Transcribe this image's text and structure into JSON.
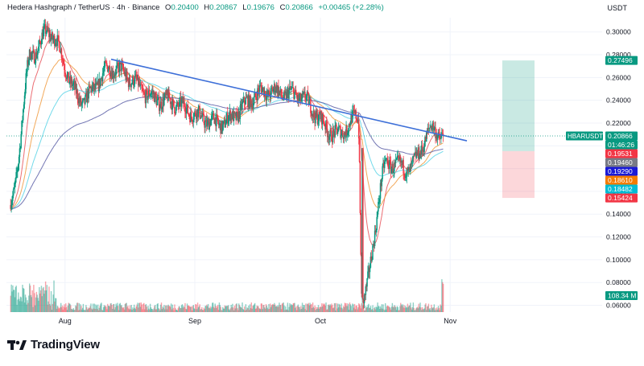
{
  "header": {
    "symbol": "Hedera Hashgraph / TetherUS · 4h · Binance",
    "ohlc": [
      {
        "label": "O",
        "value": "0.20400"
      },
      {
        "label": "H",
        "value": "0.20867"
      },
      {
        "label": "L",
        "value": "0.19676"
      },
      {
        "label": "C",
        "value": "0.20866"
      }
    ],
    "change": "+0.00465 (+2.28%)",
    "currency": "USDT"
  },
  "brand": {
    "name": "TradingView"
  },
  "colors": {
    "up": "#089981",
    "down": "#F23645",
    "trendline": "#3d6fd8",
    "ma_navy": "#5b5ea6",
    "ma_cyan": "#5bd3e6",
    "ma_orange": "#f09a3e",
    "ma_red": "#e8535a",
    "target_zone": "#089981",
    "stop_zone": "#F23645"
  },
  "chart_data": {
    "type": "candlestick",
    "timeframe": "4h",
    "xaxis": {
      "ticks": [
        "Aug",
        "Sep",
        "Oct",
        "Nov"
      ]
    },
    "yaxis": {
      "range": [
        0.054,
        0.3125
      ],
      "ticks": [
        "0.30000",
        "0.28000",
        "0.26000",
        "0.24000",
        "0.22000",
        "0.20000",
        "0.18000",
        "0.16000",
        "0.14000",
        "0.12000",
        "0.10000",
        "0.08000",
        "0.06000"
      ]
    },
    "price_tags": [
      {
        "text": "0.27496",
        "value": 0.27496,
        "color": "#089981"
      },
      {
        "text": "0.20866",
        "value": 0.20866,
        "color": "#089981"
      },
      {
        "text": "01:46:26",
        "value": 0.20866,
        "color": "#089981"
      },
      {
        "text": "0.19531",
        "value": 0.19531,
        "color": "#F23645"
      },
      {
        "text": "0.19460",
        "value": 0.1946,
        "color": "#787b86"
      },
      {
        "text": "0.19290",
        "value": 0.1929,
        "color": "#1a1ad6"
      },
      {
        "text": "0.18610",
        "value": 0.1861,
        "color": "#f57c00"
      },
      {
        "text": "0.18482",
        "value": 0.18482,
        "color": "#00bcd4"
      },
      {
        "text": "0.15424",
        "value": 0.15424,
        "color": "#F23645"
      }
    ],
    "symbol_tag": "HBARUSDT",
    "volume_tag": "108.34 M",
    "position": {
      "entry": 0.19531,
      "target": 0.27496,
      "stop": 0.15424
    },
    "trendline": {
      "start": {
        "date": "Aug 12",
        "price": 0.276
      },
      "end": {
        "date": "Nov 5",
        "price": 0.2044
      }
    },
    "key_points": [
      {
        "date": "Jul 19",
        "price": 0.148
      },
      {
        "date": "Jul 24",
        "price": 0.28
      },
      {
        "date": "Jul 28",
        "price": 0.3
      },
      {
        "date": "Aug 5",
        "price": 0.24
      },
      {
        "date": "Aug 12",
        "price": 0.268
      },
      {
        "date": "Aug 24",
        "price": 0.24
      },
      {
        "date": "Sep 7",
        "price": 0.22
      },
      {
        "date": "Sep 18",
        "price": 0.248
      },
      {
        "date": "Sep 25",
        "price": 0.245
      },
      {
        "date": "Oct 5",
        "price": 0.21
      },
      {
        "date": "Oct 10",
        "price": 0.225
      },
      {
        "date": "Oct 11",
        "price": 0.065
      },
      {
        "date": "Oct 17",
        "price": 0.185
      },
      {
        "date": "Oct 22",
        "price": 0.18
      },
      {
        "date": "Oct 28",
        "price": 0.215
      },
      {
        "date": "Oct 30",
        "price": 0.20866
      }
    ]
  }
}
